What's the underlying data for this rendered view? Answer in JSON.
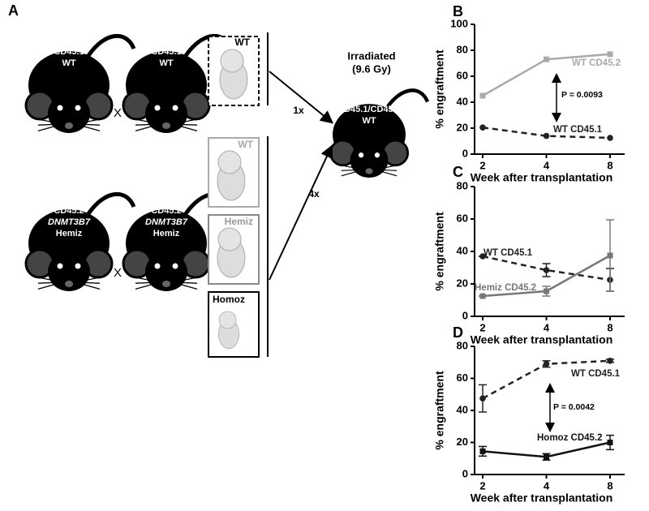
{
  "diagram": {
    "panel": "A",
    "mice": [
      {
        "lines": [
          "CD45.1",
          "WT"
        ]
      },
      {
        "lines": [
          "CD45.1",
          "WT"
        ]
      },
      {
        "lines": [
          "CD45.2",
          "DNMT3B7",
          "Hemiz"
        ]
      },
      {
        "lines": [
          "CD45.2",
          "DNMT3B7",
          "Hemiz"
        ]
      },
      {
        "lines": [
          "CD45.1/CD45.2",
          "WT"
        ]
      }
    ],
    "crosses": [
      "X",
      "X"
    ],
    "embryos": [
      "WT",
      "WT",
      "Hemiz",
      "Homoz"
    ],
    "arrows": [
      "1x",
      "4x"
    ],
    "recipient_note": [
      "Irradiated",
      "(9.6 Gy)"
    ]
  },
  "chart_data": [
    {
      "type": "line",
      "label": "B",
      "xlabel": "Week after transplantation",
      "ylabel": "% engraftment",
      "categories": [
        "2",
        "4",
        "8"
      ],
      "ylim": [
        0,
        100
      ],
      "yticks": [
        0,
        20,
        40,
        60,
        80,
        100
      ],
      "series": [
        {
          "name": "WT CD45.2",
          "color": "#aaaaaa",
          "style": "solid",
          "marker": "square",
          "values": [
            45,
            73,
            77
          ]
        },
        {
          "name": "WT CD45.1",
          "color": "#222222",
          "style": "dashed",
          "marker": "circle",
          "values": [
            20.5,
            14,
            12.5
          ]
        }
      ],
      "annotations": [
        "P = 0.0093"
      ]
    },
    {
      "type": "line",
      "label": "C",
      "xlabel": "Week after transplantation",
      "ylabel": "% engraftment",
      "categories": [
        "2",
        "4",
        "8"
      ],
      "ylim": [
        0,
        80
      ],
      "yticks": [
        0,
        20,
        40,
        60,
        80
      ],
      "series": [
        {
          "name": "WT CD45.1",
          "color": "#222222",
          "style": "dashed",
          "marker": "circle",
          "values": [
            37,
            28.5,
            22.5
          ],
          "errors": [
            0,
            4,
            7
          ]
        },
        {
          "name": "Hemiz CD45.2",
          "color": "#777777",
          "style": "solid",
          "marker": "square",
          "values": [
            12.5,
            15.5,
            37.5
          ],
          "errors": [
            0,
            3,
            22
          ]
        }
      ]
    },
    {
      "type": "line",
      "label": "D",
      "xlabel": "Week after transplantation",
      "ylabel": "% engraftment",
      "categories": [
        "2",
        "4",
        "8"
      ],
      "ylim": [
        0,
        80
      ],
      "yticks": [
        0,
        20,
        40,
        60,
        80
      ],
      "series": [
        {
          "name": "WT CD45.1",
          "color": "#222222",
          "style": "dashed",
          "marker": "circle",
          "values": [
            47.5,
            69,
            71
          ],
          "errors": [
            8.5,
            2,
            1
          ]
        },
        {
          "name": "Homoz CD45.2",
          "color": "#111111",
          "style": "solid",
          "marker": "square",
          "values": [
            14.5,
            11,
            20
          ],
          "errors": [
            3,
            2,
            4.5
          ]
        }
      ],
      "annotations": [
        "P = 0.0042"
      ]
    }
  ]
}
